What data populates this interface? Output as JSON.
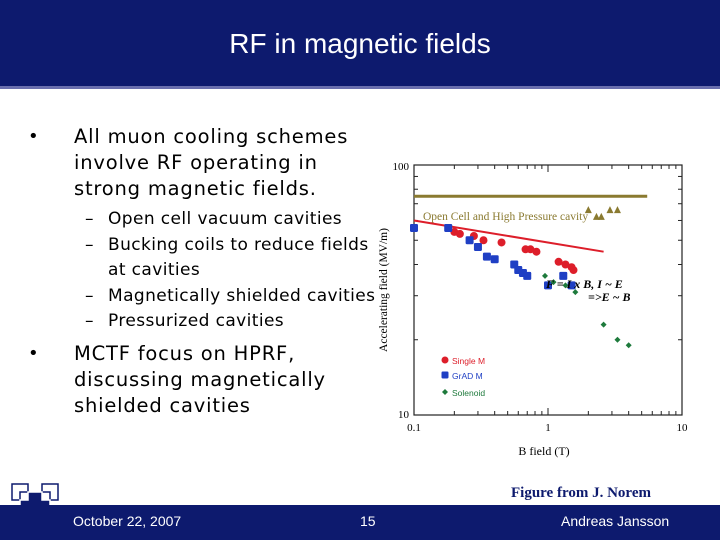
{
  "slide": {
    "title": "RF in magnetic fields",
    "bullets": [
      {
        "text": "All muon cooling schemes involve RF operating in strong magnetic fields.",
        "sub": [
          "Open cell vacuum cavities",
          "Bucking coils to reduce fields at cavities",
          "Magnetically shielded cavities",
          "Pressurized cavities"
        ]
      },
      {
        "text": "MCTF focus on HPRF, discussing magnetically shielded cavities",
        "sub": []
      }
    ],
    "bullet_glyph": "•",
    "sub_glyph": "–",
    "caption": "Figure from J. Norem"
  },
  "footer": {
    "date": "October 22, 2007",
    "page": "15",
    "author": "Andreas Jansson"
  },
  "colors": {
    "title_bar": "#0d1a6e",
    "single_m": "#dd1e2a",
    "grad_m": "#1f3fc4",
    "solenoid": "#1e7a3c",
    "open_cell": "#8a7a30"
  },
  "chart_data": {
    "type": "scatter",
    "title": "",
    "xlabel": "B field (T)",
    "ylabel": "Accelerating field (MV/m)",
    "xscale": "log",
    "yscale": "log",
    "xlim": [
      0.1,
      10
    ],
    "ylim": [
      10,
      100
    ],
    "x_ticks": [
      "0.1",
      "1",
      "10"
    ],
    "y_ticks": [
      "100",
      "10"
    ],
    "legend_position": "lower-left",
    "annotations": {
      "open_cell": "Open Cell and High Pressure cavity",
      "formula1": "F = I x B,  I ~ E",
      "formula2": "=>E ~ B"
    },
    "open_cell_line": {
      "y": 75
    },
    "open_cell_points": [
      {
        "x": 2.0,
        "y": 66
      },
      {
        "x": 2.3,
        "y": 62
      },
      {
        "x": 2.5,
        "y": 62
      },
      {
        "x": 2.9,
        "y": 66
      },
      {
        "x": 3.3,
        "y": 66
      }
    ],
    "trend_line": [
      {
        "x": 0.1,
        "y": 60
      },
      {
        "x": 2.6,
        "y": 45
      }
    ],
    "series": [
      {
        "name": "Single M",
        "marker": "circle",
        "points": [
          {
            "x": 0.2,
            "y": 54
          },
          {
            "x": 0.22,
            "y": 53
          },
          {
            "x": 0.28,
            "y": 52
          },
          {
            "x": 0.33,
            "y": 50
          },
          {
            "x": 0.45,
            "y": 49
          },
          {
            "x": 0.68,
            "y": 46
          },
          {
            "x": 0.74,
            "y": 46
          },
          {
            "x": 0.82,
            "y": 45
          },
          {
            "x": 1.2,
            "y": 41
          },
          {
            "x": 1.35,
            "y": 40
          },
          {
            "x": 1.5,
            "y": 39
          },
          {
            "x": 1.55,
            "y": 38
          }
        ]
      },
      {
        "name": "GrAD M",
        "marker": "square",
        "points": [
          {
            "x": 0.1,
            "y": 56
          },
          {
            "x": 0.18,
            "y": 56
          },
          {
            "x": 0.26,
            "y": 50
          },
          {
            "x": 0.3,
            "y": 47
          },
          {
            "x": 0.35,
            "y": 43
          },
          {
            "x": 0.4,
            "y": 42
          },
          {
            "x": 0.56,
            "y": 40
          },
          {
            "x": 0.6,
            "y": 38
          },
          {
            "x": 0.65,
            "y": 37
          },
          {
            "x": 0.7,
            "y": 36
          },
          {
            "x": 1.0,
            "y": 33
          },
          {
            "x": 1.3,
            "y": 36
          },
          {
            "x": 1.5,
            "y": 33
          }
        ]
      },
      {
        "name": "Solenoid",
        "marker": "diamond",
        "points": [
          {
            "x": 0.95,
            "y": 36
          },
          {
            "x": 1.1,
            "y": 34
          },
          {
            "x": 1.35,
            "y": 33
          },
          {
            "x": 1.6,
            "y": 31
          },
          {
            "x": 2.6,
            "y": 23
          },
          {
            "x": 3.3,
            "y": 20
          },
          {
            "x": 4.0,
            "y": 19
          }
        ]
      }
    ]
  }
}
